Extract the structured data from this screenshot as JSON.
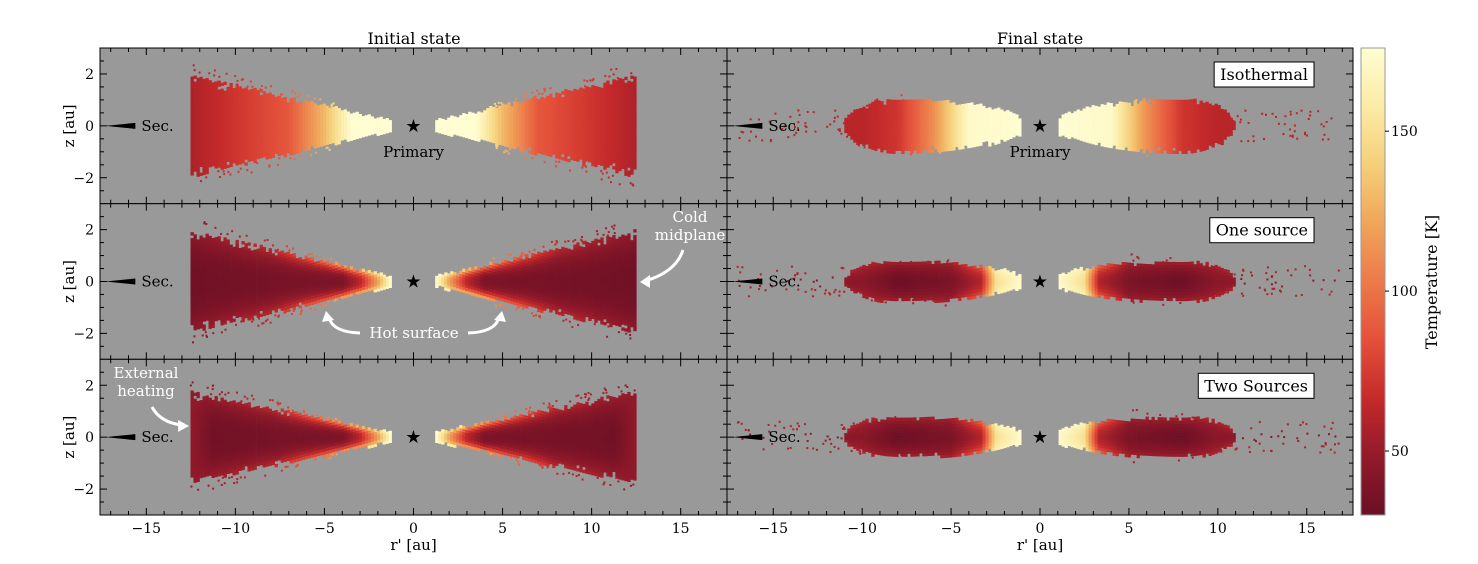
{
  "chart_data": {
    "type": "scatter",
    "layout": "3 rows x 2 columns, shared axes",
    "columns": [
      {
        "title": "Initial state"
      },
      {
        "title": "Final state"
      }
    ],
    "rows": [
      {
        "label": "Isothermal"
      },
      {
        "label": "One source"
      },
      {
        "label": "Two Sources"
      }
    ],
    "xlabel": "r' [au]",
    "ylabel": "z [au]",
    "xlim": [
      -17.6,
      17.6
    ],
    "ylim": [
      -3,
      3
    ],
    "xticks": [
      -15,
      -10,
      -5,
      0,
      5,
      10,
      15
    ],
    "yticks": [
      -2,
      0,
      2
    ],
    "grid": false,
    "background": "#999999",
    "colorbar": {
      "label": "Temperature [K]",
      "range": [
        30,
        176
      ],
      "ticks": [
        50,
        100,
        150
      ],
      "colors": [
        "#6b0f25",
        "#921a2a",
        "#c52a2a",
        "#e4503a",
        "#ec7a4a",
        "#f0a55a",
        "#f5cf7a",
        "#fbeba6",
        "#fffdd2"
      ]
    },
    "markers": {
      "primary": "Primary",
      "secondary": "Sec."
    },
    "annotations": {
      "cold_midplane": [
        "Cold",
        "midplane"
      ],
      "hot_surface": "Hot surface",
      "external_heating": [
        "External",
        "heating"
      ]
    },
    "disks": {
      "initial": {
        "r_in": 1.3,
        "r_out": 12.5,
        "max_half_height": 2.0
      },
      "final": {
        "r_in": 1.0,
        "r_out": 10.5,
        "peak_r": 8,
        "max_half_height_isothermal": 1.05,
        "max_half_height_heated": 0.8
      }
    }
  }
}
